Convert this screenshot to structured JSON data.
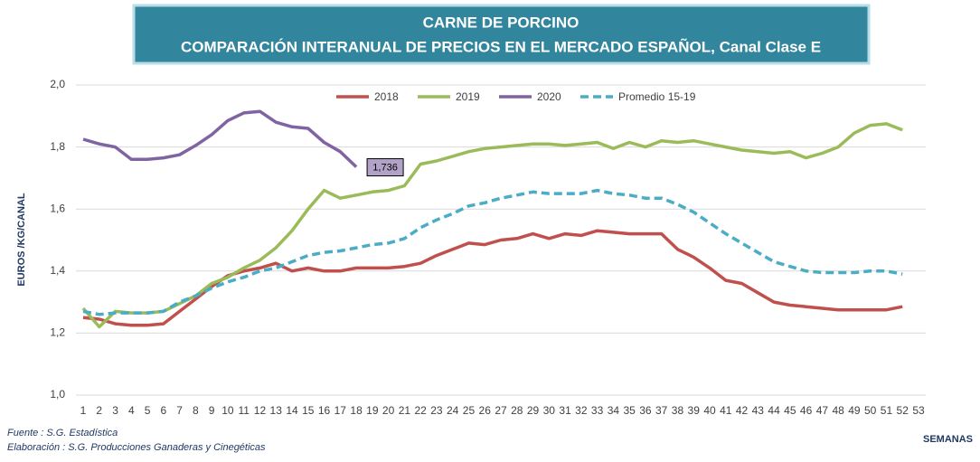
{
  "chart_data": {
    "type": "line",
    "title": "CARNE DE PORCINO",
    "subtitle": "COMPARACIÓN INTERANUAL DE PRECIOS EN EL MERCADO ESPAÑOL, Canal Clase E",
    "y_label": "EUROS /KG/CANAL",
    "x_label": "SEMANAS",
    "notes": [
      "Fuente :  S.G. Estadística",
      "Elaboración : S.G. Producciones Ganaderas y Cinegéticas"
    ],
    "x": [
      1,
      2,
      3,
      4,
      5,
      6,
      7,
      8,
      9,
      10,
      11,
      12,
      13,
      14,
      15,
      16,
      17,
      18,
      19,
      20,
      21,
      22,
      23,
      24,
      25,
      26,
      27,
      28,
      29,
      30,
      31,
      32,
      33,
      34,
      35,
      36,
      37,
      38,
      39,
      40,
      41,
      42,
      43,
      44,
      45,
      46,
      47,
      48,
      49,
      50,
      51,
      52,
      53
    ],
    "xlim": [
      1,
      53
    ],
    "ylim": [
      1.0,
      2.0
    ],
    "yticks": [
      {
        "value": 1.0,
        "label": "1,0"
      },
      {
        "value": 1.2,
        "label": "1,2"
      },
      {
        "value": 1.4,
        "label": "1,4"
      },
      {
        "value": 1.6,
        "label": "1,6"
      },
      {
        "value": 1.8,
        "label": "1,8"
      },
      {
        "value": 2.0,
        "label": "2,0"
      }
    ],
    "grid": true,
    "legend": "top",
    "series": [
      {
        "name": "2018",
        "color": "#c0504d",
        "dashed": false,
        "values": [
          1.25,
          1.245,
          1.23,
          1.225,
          1.225,
          1.23,
          1.27,
          1.31,
          1.35,
          1.385,
          1.4,
          1.41,
          1.425,
          1.4,
          1.41,
          1.4,
          1.4,
          1.41,
          1.41,
          1.41,
          1.415,
          1.425,
          1.45,
          1.47,
          1.49,
          1.485,
          1.5,
          1.505,
          1.52,
          1.505,
          1.52,
          1.515,
          1.53,
          1.525,
          1.52,
          1.52,
          1.52,
          1.47,
          1.445,
          1.41,
          1.37,
          1.36,
          1.33,
          1.3,
          1.29,
          1.285,
          1.28,
          1.275,
          1.275,
          1.275,
          1.275,
          1.285,
          null
        ]
      },
      {
        "name": "2019",
        "color": "#9bbb59",
        "dashed": false,
        "values": [
          1.28,
          1.22,
          1.27,
          1.265,
          1.265,
          1.27,
          1.295,
          1.32,
          1.36,
          1.38,
          1.41,
          1.435,
          1.475,
          1.53,
          1.6,
          1.66,
          1.635,
          1.645,
          1.655,
          1.66,
          1.675,
          1.745,
          1.755,
          1.77,
          1.785,
          1.795,
          1.8,
          1.805,
          1.81,
          1.81,
          1.805,
          1.81,
          1.815,
          1.795,
          1.815,
          1.8,
          1.82,
          1.815,
          1.82,
          1.81,
          1.8,
          1.79,
          1.785,
          1.78,
          1.785,
          1.765,
          1.78,
          1.8,
          1.845,
          1.87,
          1.875,
          1.855,
          null
        ]
      },
      {
        "name": "2020",
        "color": "#8064a2",
        "dashed": false,
        "values": [
          1.825,
          1.81,
          1.8,
          1.76,
          1.76,
          1.765,
          1.775,
          1.805,
          1.84,
          1.885,
          1.91,
          1.915,
          1.88,
          1.865,
          1.86,
          1.815,
          1.785,
          1.736,
          null,
          null,
          null,
          null,
          null,
          null,
          null,
          null,
          null,
          null,
          null,
          null,
          null,
          null,
          null,
          null,
          null,
          null,
          null,
          null,
          null,
          null,
          null,
          null,
          null,
          null,
          null,
          null,
          null,
          null,
          null,
          null,
          null,
          null,
          null
        ],
        "value_labels": [
          null,
          null,
          null,
          null,
          null,
          null,
          null,
          null,
          null,
          null,
          null,
          null,
          null,
          null,
          null,
          null,
          null,
          "1,736",
          null,
          null,
          null,
          null,
          null,
          null,
          null,
          null,
          null,
          null,
          null,
          null,
          null,
          null,
          null,
          null,
          null,
          null,
          null,
          null,
          null,
          null,
          null,
          null,
          null,
          null,
          null,
          null,
          null,
          null,
          null,
          null,
          null,
          null,
          null
        ]
      },
      {
        "name": "Promedio 15-19",
        "color": "#4bacc6",
        "dashed": true,
        "values": [
          1.27,
          1.26,
          1.265,
          1.265,
          1.265,
          1.27,
          1.3,
          1.32,
          1.345,
          1.365,
          1.38,
          1.4,
          1.41,
          1.43,
          1.45,
          1.46,
          1.465,
          1.475,
          1.485,
          1.49,
          1.505,
          1.54,
          1.565,
          1.585,
          1.61,
          1.62,
          1.635,
          1.645,
          1.655,
          1.65,
          1.65,
          1.65,
          1.66,
          1.65,
          1.645,
          1.635,
          1.635,
          1.615,
          1.59,
          1.555,
          1.52,
          1.49,
          1.46,
          1.43,
          1.415,
          1.4,
          1.395,
          1.395,
          1.395,
          1.4,
          1.4,
          1.39,
          null
        ]
      }
    ]
  }
}
